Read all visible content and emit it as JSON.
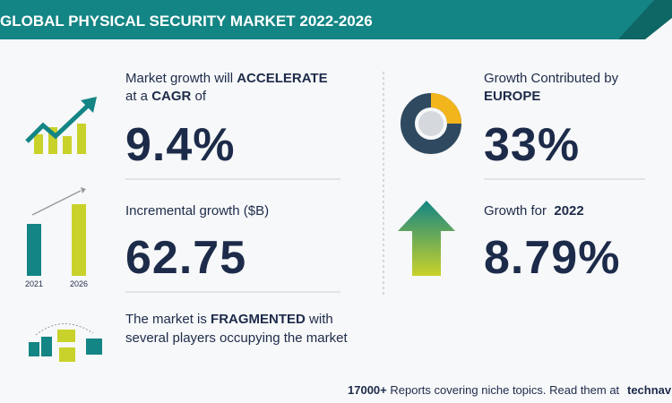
{
  "header": {
    "title": "GLOBAL PHYSICAL SECURITY MARKET 2022-2026"
  },
  "cagr": {
    "lead": "Market growth will",
    "emphasis": "ACCELERATE",
    "mid": "at a",
    "metric": "CAGR",
    "tail": "of",
    "value": "9.4%"
  },
  "incremental": {
    "label": "Incremental growth ($B)",
    "value": "62.75",
    "years": [
      "2021",
      "2026"
    ]
  },
  "structure": {
    "lead": "The market is",
    "emphasis": "FRAGMENTED",
    "tail": "with several players occupying the market"
  },
  "region": {
    "lead": "Growth Contributed by",
    "emphasis": "EUROPE",
    "value": "33%"
  },
  "yoy": {
    "lead": "Growth for",
    "year": "2022",
    "value": "8.79%"
  },
  "footer": {
    "count": "17000+",
    "text": "Reports covering niche topics. Read them at",
    "brand": "technavio"
  }
}
